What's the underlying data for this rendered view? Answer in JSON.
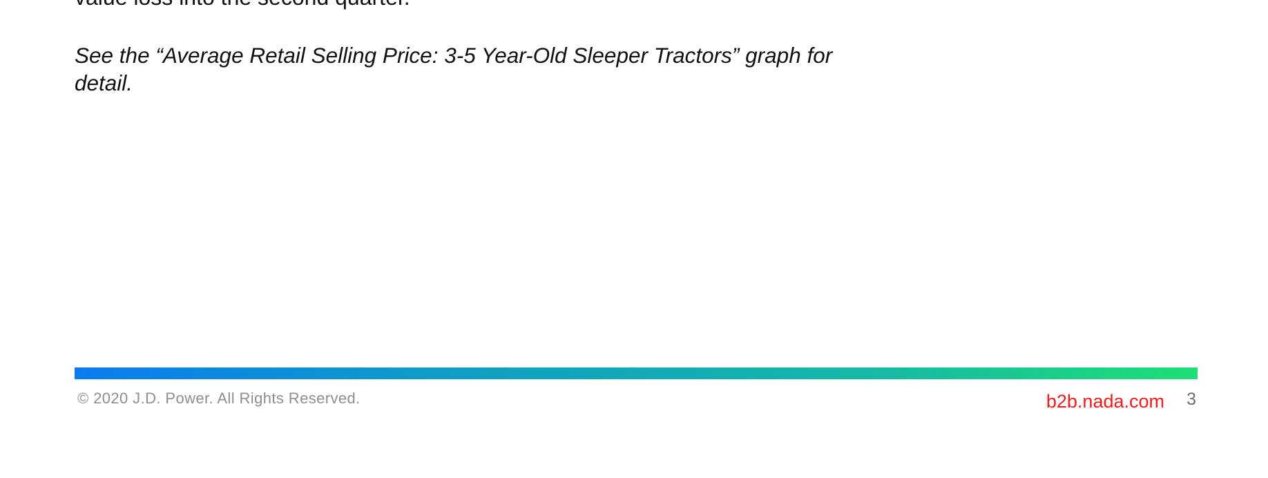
{
  "body": {
    "previous_line_fragment": "value loss into the second quarter.",
    "see_note": "See the “Average Retail Selling Price: 3-5 Year-Old Sleeper Tractors” graph for detail."
  },
  "footer": {
    "copyright": "© 2020 J.D. Power. All Rights Reserved.",
    "website": "b2b.nada.com",
    "page_number": "3",
    "bar_gradient_colors": [
      "#0a7cf0",
      "#0f9fc4",
      "#15b8a8",
      "#1ede74"
    ],
    "website_color": "#ee1c1c"
  }
}
